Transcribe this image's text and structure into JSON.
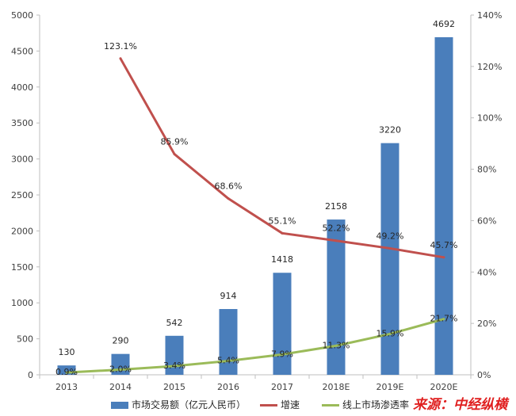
{
  "chart_data": {
    "type": "bar",
    "categories": [
      "2013",
      "2014",
      "2015",
      "2016",
      "2017",
      "2018E",
      "2019E",
      "2020E"
    ],
    "left_axis": {
      "min": 0,
      "max": 5000,
      "step": 500,
      "ticks": [
        "0",
        "500",
        "1000",
        "1500",
        "2000",
        "2500",
        "3000",
        "3500",
        "4000",
        "4500",
        "5000"
      ]
    },
    "right_axis": {
      "min": 0,
      "max": 140,
      "step": 20,
      "ticks": [
        "0%",
        "20%",
        "40%",
        "60%",
        "80%",
        "100%",
        "120%",
        "140%"
      ]
    },
    "series": [
      {
        "name": "市场交易额（亿元人民币）",
        "type": "bar",
        "axis": "left",
        "color": "#4a7ebb",
        "values": [
          130,
          290,
          542,
          914,
          1418,
          2158,
          3220,
          4692
        ],
        "labels": [
          "130",
          "290",
          "542",
          "914",
          "1418",
          "2158",
          "3220",
          "4692"
        ]
      },
      {
        "name": "增速",
        "type": "line",
        "axis": "right",
        "color": "#c0504d",
        "values": [
          null,
          123.1,
          85.9,
          68.6,
          55.1,
          52.2,
          49.2,
          45.7
        ],
        "labels": [
          null,
          "123.1%",
          "85.9%",
          "68.6%",
          "55.1%",
          "52.2%",
          "49.2%",
          "45.7%"
        ]
      },
      {
        "name": "线上市场渗透率",
        "type": "line",
        "axis": "right",
        "color": "#9bbb59",
        "values": [
          0.9,
          2.0,
          3.4,
          5.4,
          7.9,
          11.3,
          15.9,
          21.7
        ],
        "labels": [
          "0.9%",
          "2.0%",
          "3.4%",
          "5.4%",
          "7.9%",
          "11.3%",
          "15.9%",
          "21.7%"
        ]
      }
    ],
    "legend_position": "bottom",
    "grid": false
  },
  "source": "来源：中经纵横"
}
